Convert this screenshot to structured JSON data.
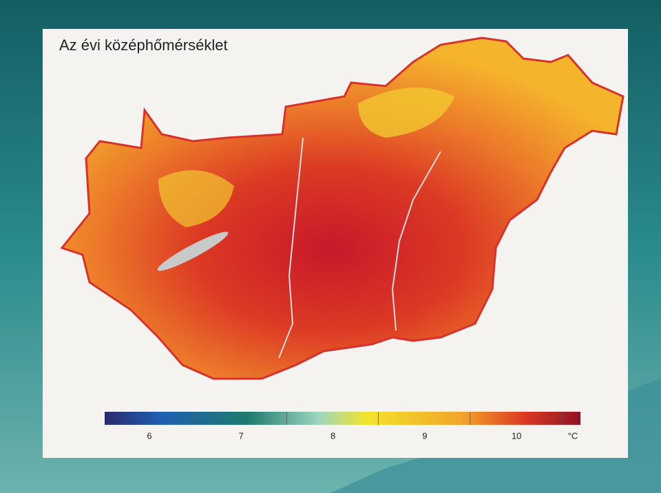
{
  "title": "Az évi középhőmérséklet",
  "legend": {
    "ticks": [
      "6",
      "7",
      "8",
      "9",
      "10"
    ],
    "unit": "°C"
  }
}
